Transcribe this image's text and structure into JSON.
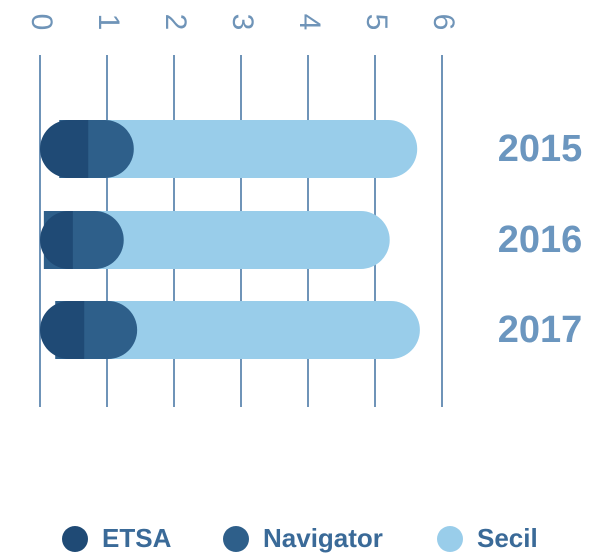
{
  "chart_data": {
    "type": "stacked-bar",
    "categories": [
      "2015",
      "2016",
      "2017"
    ],
    "series": [
      {
        "name": "ETSA",
        "color": "#1f4a75",
        "values": [
          0.72,
          0.49,
          0.66
        ]
      },
      {
        "name": "Navigator",
        "color": "#2e5f8a",
        "values": [
          0.68,
          0.76,
          0.79
        ]
      },
      {
        "name": "Secil",
        "color": "#99cdea",
        "values": [
          4.23,
          3.97,
          4.22
        ]
      }
    ],
    "xlim": [
      0,
      6
    ],
    "xticks": [
      0,
      1,
      2,
      3,
      4,
      5,
      6
    ],
    "grid": true
  }
}
